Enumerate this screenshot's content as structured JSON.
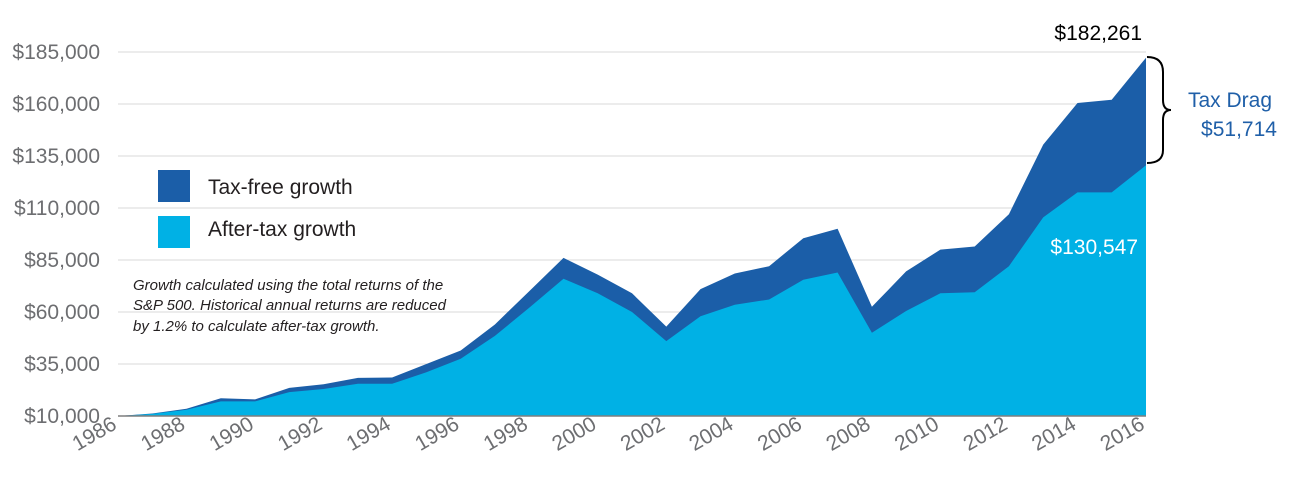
{
  "chart_data": {
    "type": "area",
    "x": [
      1986,
      1987,
      1988,
      1989,
      1990,
      1991,
      1992,
      1993,
      1994,
      1995,
      1996,
      1997,
      1998,
      1999,
      2000,
      2001,
      2002,
      2003,
      2004,
      2005,
      2006,
      2007,
      2008,
      2009,
      2010,
      2011,
      2012,
      2013,
      2014,
      2015,
      2016
    ],
    "series": [
      {
        "name": "Tax-free growth",
        "color": "#1b5ea8",
        "values": [
          10000,
          11200,
          13500,
          18500,
          18000,
          23500,
          25300,
          28300,
          28500,
          35000,
          41500,
          54000,
          70000,
          86000,
          78000,
          69000,
          53000,
          71000,
          78500,
          82000,
          95500,
          100000,
          62500,
          79500,
          90000,
          91500,
          107000,
          140500,
          160500,
          162000,
          182261
        ]
      },
      {
        "name": "After-tax growth",
        "color": "#00b1e5",
        "values": [
          10000,
          11000,
          13000,
          17000,
          17000,
          21500,
          23000,
          25500,
          25500,
          31000,
          37500,
          48500,
          62000,
          76000,
          69000,
          60000,
          46000,
          58000,
          63500,
          66000,
          75500,
          79000,
          50000,
          60500,
          69000,
          69500,
          82000,
          105500,
          117500,
          117500,
          130547
        ]
      }
    ],
    "ylim": [
      10000,
      185000
    ],
    "y_ticks": [
      "$10,000",
      "$35,000",
      "$60,000",
      "$85,000",
      "$110,000",
      "$135,000",
      "$160,000",
      "$185,000"
    ],
    "x_ticks": [
      "1986",
      "1988",
      "1990",
      "1992",
      "1994",
      "1996",
      "1998",
      "2000",
      "2002",
      "2004",
      "2006",
      "2008",
      "2010",
      "2012",
      "2014",
      "2016"
    ],
    "grid": true,
    "legend_position": "upper-left",
    "annotations": {
      "final_total": "$182,261",
      "tax_drag_label": "Tax Drag",
      "tax_drag_value": "$51,714",
      "after_tax_final": "$130,547",
      "note_lines": [
        "Growth calculated using the total returns of the",
        "S&P 500. Historical annual returns are reduced",
        "by 1.2% to calculate after-tax growth."
      ]
    }
  }
}
